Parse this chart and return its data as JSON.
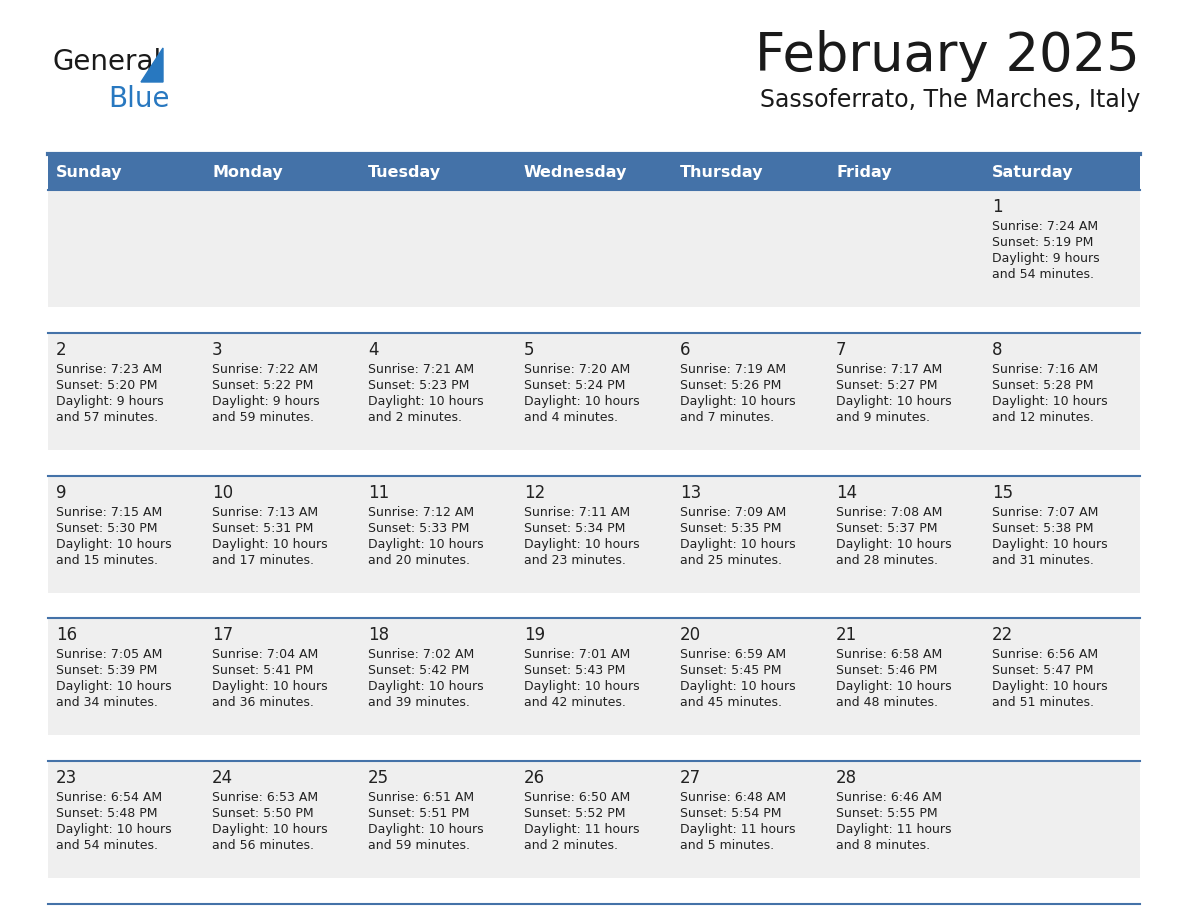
{
  "title": "February 2025",
  "subtitle": "Sassoferrato, The Marches, Italy",
  "days_of_week": [
    "Sunday",
    "Monday",
    "Tuesday",
    "Wednesday",
    "Thursday",
    "Friday",
    "Saturday"
  ],
  "header_bg": "#4472a8",
  "header_text": "#ffffff",
  "cell_bg": "#efefef",
  "cell_bg_white": "#ffffff",
  "separator_color": "#4472a8",
  "text_color": "#222222",
  "day_num_color": "#222222",
  "info_color": "#222222",
  "calendar_data": [
    [
      null,
      null,
      null,
      null,
      null,
      null,
      {
        "day": 1,
        "sunrise": "7:24 AM",
        "sunset": "5:19 PM",
        "daylight": "9 hours",
        "daylight2": "and 54 minutes."
      }
    ],
    [
      {
        "day": 2,
        "sunrise": "7:23 AM",
        "sunset": "5:20 PM",
        "daylight": "9 hours",
        "daylight2": "and 57 minutes."
      },
      {
        "day": 3,
        "sunrise": "7:22 AM",
        "sunset": "5:22 PM",
        "daylight": "9 hours",
        "daylight2": "and 59 minutes."
      },
      {
        "day": 4,
        "sunrise": "7:21 AM",
        "sunset": "5:23 PM",
        "daylight": "10 hours",
        "daylight2": "and 2 minutes."
      },
      {
        "day": 5,
        "sunrise": "7:20 AM",
        "sunset": "5:24 PM",
        "daylight": "10 hours",
        "daylight2": "and 4 minutes."
      },
      {
        "day": 6,
        "sunrise": "7:19 AM",
        "sunset": "5:26 PM",
        "daylight": "10 hours",
        "daylight2": "and 7 minutes."
      },
      {
        "day": 7,
        "sunrise": "7:17 AM",
        "sunset": "5:27 PM",
        "daylight": "10 hours",
        "daylight2": "and 9 minutes."
      },
      {
        "day": 8,
        "sunrise": "7:16 AM",
        "sunset": "5:28 PM",
        "daylight": "10 hours",
        "daylight2": "and 12 minutes."
      }
    ],
    [
      {
        "day": 9,
        "sunrise": "7:15 AM",
        "sunset": "5:30 PM",
        "daylight": "10 hours",
        "daylight2": "and 15 minutes."
      },
      {
        "day": 10,
        "sunrise": "7:13 AM",
        "sunset": "5:31 PM",
        "daylight": "10 hours",
        "daylight2": "and 17 minutes."
      },
      {
        "day": 11,
        "sunrise": "7:12 AM",
        "sunset": "5:33 PM",
        "daylight": "10 hours",
        "daylight2": "and 20 minutes."
      },
      {
        "day": 12,
        "sunrise": "7:11 AM",
        "sunset": "5:34 PM",
        "daylight": "10 hours",
        "daylight2": "and 23 minutes."
      },
      {
        "day": 13,
        "sunrise": "7:09 AM",
        "sunset": "5:35 PM",
        "daylight": "10 hours",
        "daylight2": "and 25 minutes."
      },
      {
        "day": 14,
        "sunrise": "7:08 AM",
        "sunset": "5:37 PM",
        "daylight": "10 hours",
        "daylight2": "and 28 minutes."
      },
      {
        "day": 15,
        "sunrise": "7:07 AM",
        "sunset": "5:38 PM",
        "daylight": "10 hours",
        "daylight2": "and 31 minutes."
      }
    ],
    [
      {
        "day": 16,
        "sunrise": "7:05 AM",
        "sunset": "5:39 PM",
        "daylight": "10 hours",
        "daylight2": "and 34 minutes."
      },
      {
        "day": 17,
        "sunrise": "7:04 AM",
        "sunset": "5:41 PM",
        "daylight": "10 hours",
        "daylight2": "and 36 minutes."
      },
      {
        "day": 18,
        "sunrise": "7:02 AM",
        "sunset": "5:42 PM",
        "daylight": "10 hours",
        "daylight2": "and 39 minutes."
      },
      {
        "day": 19,
        "sunrise": "7:01 AM",
        "sunset": "5:43 PM",
        "daylight": "10 hours",
        "daylight2": "and 42 minutes."
      },
      {
        "day": 20,
        "sunrise": "6:59 AM",
        "sunset": "5:45 PM",
        "daylight": "10 hours",
        "daylight2": "and 45 minutes."
      },
      {
        "day": 21,
        "sunrise": "6:58 AM",
        "sunset": "5:46 PM",
        "daylight": "10 hours",
        "daylight2": "and 48 minutes."
      },
      {
        "day": 22,
        "sunrise": "6:56 AM",
        "sunset": "5:47 PM",
        "daylight": "10 hours",
        "daylight2": "and 51 minutes."
      }
    ],
    [
      {
        "day": 23,
        "sunrise": "6:54 AM",
        "sunset": "5:48 PM",
        "daylight": "10 hours",
        "daylight2": "and 54 minutes."
      },
      {
        "day": 24,
        "sunrise": "6:53 AM",
        "sunset": "5:50 PM",
        "daylight": "10 hours",
        "daylight2": "and 56 minutes."
      },
      {
        "day": 25,
        "sunrise": "6:51 AM",
        "sunset": "5:51 PM",
        "daylight": "10 hours",
        "daylight2": "and 59 minutes."
      },
      {
        "day": 26,
        "sunrise": "6:50 AM",
        "sunset": "5:52 PM",
        "daylight": "11 hours",
        "daylight2": "and 2 minutes."
      },
      {
        "day": 27,
        "sunrise": "6:48 AM",
        "sunset": "5:54 PM",
        "daylight": "11 hours",
        "daylight2": "and 5 minutes."
      },
      {
        "day": 28,
        "sunrise": "6:46 AM",
        "sunset": "5:55 PM",
        "daylight": "11 hours",
        "daylight2": "and 8 minutes."
      },
      null
    ]
  ],
  "logo_text_general": "General",
  "logo_text_blue": "Blue",
  "logo_color_general": "#1a1a1a",
  "logo_color_blue": "#2878c0",
  "logo_triangle_color": "#2878c0"
}
